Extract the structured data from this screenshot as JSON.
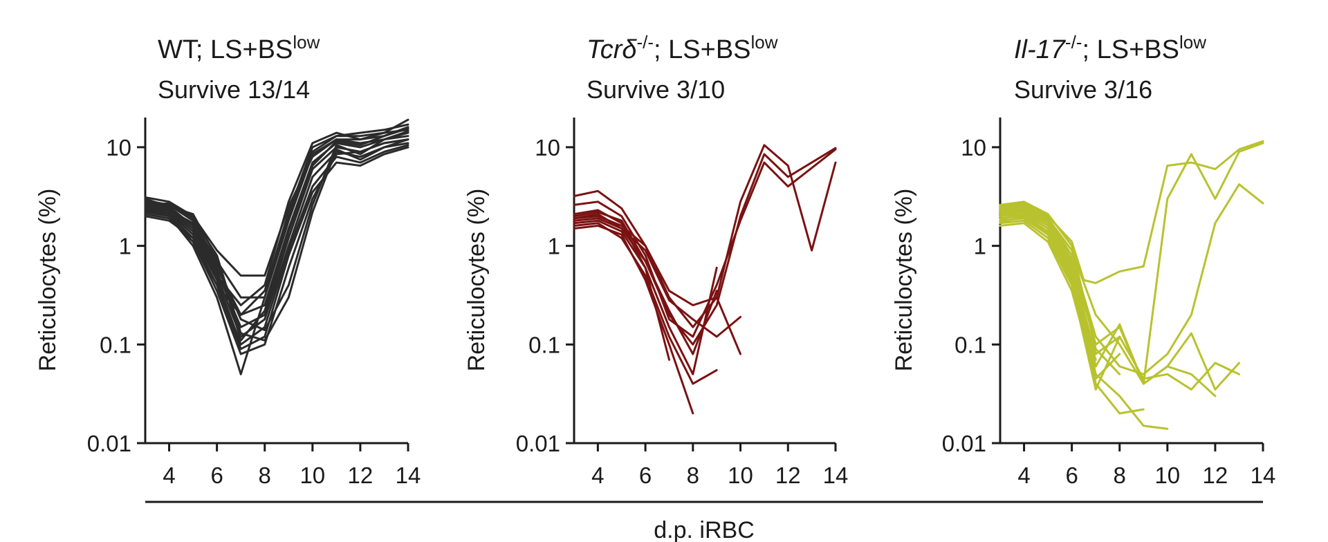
{
  "colors": {
    "wt": "#2b2b2b",
    "tcrd": "#7a1212",
    "il17": "#b8c22e",
    "axis": "#1a1a1a"
  },
  "shared_xlabel": "d.p. iRBC",
  "chart_data": [
    {
      "type": "line",
      "title_parts": [
        "WT; LS+BS",
        "low"
      ],
      "subtitle": "Survive 13/14",
      "ylabel": "Reticulocytes (%)",
      "yscale": "log",
      "ylim": [
        0.01,
        20
      ],
      "yticks": [
        0.01,
        0.1,
        1,
        10
      ],
      "ytick_labels": [
        "0.01",
        "0.1",
        "1",
        "10"
      ],
      "xlim": [
        3,
        14
      ],
      "xticks": [
        4,
        6,
        8,
        10,
        12,
        14
      ],
      "xtick_labels": [
        "4",
        "6",
        "8",
        "10",
        "12",
        "14"
      ],
      "color_key": "wt",
      "series": [
        {
          "x": [
            3,
            4,
            5,
            6,
            7,
            8,
            9,
            10,
            11,
            12,
            13,
            14
          ],
          "y": [
            3.1,
            2.8,
            2.0,
            0.9,
            0.5,
            0.5,
            2.5,
            8.0,
            12,
            11,
            12,
            14
          ]
        },
        {
          "x": [
            3,
            4,
            5,
            6,
            7,
            8,
            9,
            10,
            11,
            12,
            13,
            14
          ],
          "y": [
            2.9,
            2.6,
            1.8,
            0.7,
            0.3,
            0.3,
            2.0,
            9.0,
            13,
            13,
            14,
            15
          ]
        },
        {
          "x": [
            3,
            4,
            5,
            6,
            7,
            8,
            9,
            10,
            11,
            12,
            13,
            14
          ],
          "y": [
            2.8,
            2.5,
            1.6,
            0.6,
            0.2,
            0.25,
            1.5,
            7.0,
            11,
            10,
            12,
            13
          ]
        },
        {
          "x": [
            3,
            4,
            5,
            6,
            7,
            8,
            9,
            10,
            11,
            12,
            13,
            14
          ],
          "y": [
            2.7,
            2.4,
            1.5,
            0.55,
            0.15,
            0.2,
            1.2,
            6.0,
            10,
            9,
            11,
            12
          ]
        },
        {
          "x": [
            3,
            4,
            5,
            6,
            7,
            8,
            9,
            10,
            11,
            12,
            13,
            14
          ],
          "y": [
            2.6,
            2.3,
            1.4,
            0.5,
            0.12,
            0.18,
            1.0,
            5.0,
            9,
            8,
            10,
            11
          ]
        },
        {
          "x": [
            3,
            4,
            5,
            6,
            7,
            8,
            9,
            10,
            11,
            12,
            13,
            14
          ],
          "y": [
            2.5,
            2.2,
            1.3,
            0.45,
            0.1,
            0.15,
            0.9,
            4.0,
            8,
            7,
            9,
            10.5
          ]
        },
        {
          "x": [
            3,
            4,
            5,
            6,
            7,
            8,
            9,
            10,
            11,
            12,
            13,
            14
          ],
          "y": [
            2.4,
            2.1,
            1.2,
            0.4,
            0.09,
            0.12,
            0.8,
            3.5,
            7,
            6.5,
            8.5,
            10
          ]
        },
        {
          "x": [
            3,
            4,
            5,
            6,
            7,
            8,
            9,
            10,
            11,
            12,
            13,
            14
          ],
          "y": [
            2.3,
            2.0,
            1.1,
            0.35,
            0.08,
            0.1,
            0.6,
            3.0,
            8.5,
            9,
            11,
            12
          ]
        },
        {
          "x": [
            3,
            4,
            5,
            6,
            7,
            8,
            9,
            10,
            11,
            12,
            13,
            14
          ],
          "y": [
            2.2,
            2.0,
            1.0,
            0.3,
            0.05,
            0.3,
            1.8,
            8.5,
            12,
            12,
            13,
            16
          ]
        },
        {
          "x": [
            3,
            4,
            5,
            6,
            7,
            8,
            9,
            10,
            11,
            12,
            13,
            14
          ],
          "y": [
            2.1,
            1.9,
            1.1,
            0.4,
            0.2,
            0.35,
            2.2,
            10,
            13,
            14,
            15,
            17
          ]
        },
        {
          "x": [
            3,
            4,
            5,
            6,
            7,
            8,
            9,
            10,
            11,
            12,
            13,
            14
          ],
          "y": [
            2.0,
            1.8,
            1.2,
            0.5,
            0.25,
            0.4,
            2.8,
            11,
            14,
            12,
            14,
            19
          ]
        },
        {
          "x": [
            3,
            4,
            5,
            6,
            7,
            8,
            9,
            10,
            11,
            12,
            13,
            14
          ],
          "y": [
            2.6,
            2.7,
            1.9,
            0.8,
            0.13,
            0.11,
            0.3,
            2.2,
            9.5,
            7.5,
            10,
            12
          ]
        },
        {
          "x": [
            3,
            4,
            5,
            6,
            7,
            8,
            9,
            10,
            11,
            12,
            13,
            14
          ],
          "y": [
            2.9,
            2.3,
            1.7,
            0.65,
            0.18,
            0.14,
            0.4,
            2.6,
            10.5,
            8.5,
            12,
            14.5
          ]
        },
        {
          "x": [
            3,
            4,
            5,
            6,
            7,
            8,
            9,
            10,
            11,
            12,
            13,
            14
          ],
          "y": [
            3.0,
            2.5,
            2.1,
            0.75,
            0.11,
            0.22,
            1.4,
            6.5,
            11.5,
            10.5,
            13,
            15.5
          ]
        }
      ]
    },
    {
      "type": "line",
      "title_parts": [
        "Tcrδ",
        "-/-",
        "; LS+BS",
        "low"
      ],
      "subtitle": "Survive 3/10",
      "ylabel": "Reticulocytes (%)",
      "yscale": "log",
      "ylim": [
        0.01,
        20
      ],
      "yticks": [
        0.01,
        0.1,
        1,
        10
      ],
      "ytick_labels": [
        "0.01",
        "0.1",
        "1",
        "10"
      ],
      "xlim": [
        3,
        14
      ],
      "xticks": [
        4,
        6,
        8,
        10,
        12,
        14
      ],
      "xtick_labels": [
        "4",
        "6",
        "8",
        "10",
        "12",
        "14"
      ],
      "color_key": "tcrd",
      "series": [
        {
          "x": [
            3,
            4,
            5,
            6,
            7,
            8,
            9,
            10,
            11,
            12,
            13,
            14
          ],
          "y": [
            3.2,
            3.6,
            2.4,
            1.0,
            0.3,
            0.15,
            0.3,
            2.8,
            10.5,
            6.5,
            0.9,
            7.0
          ]
        },
        {
          "x": [
            3,
            4,
            5,
            6,
            7,
            8,
            9,
            10,
            11,
            12,
            14
          ],
          "y": [
            2.6,
            2.8,
            2.0,
            0.8,
            0.18,
            0.12,
            0.4,
            1.8,
            7.0,
            4.0,
            9.5
          ]
        },
        {
          "x": [
            3,
            4,
            5,
            6,
            7,
            8,
            9,
            10,
            11,
            12,
            14
          ],
          "y": [
            2.0,
            2.2,
            1.8,
            0.7,
            0.2,
            0.1,
            0.25,
            2.0,
            8.5,
            5.0,
            9.8
          ]
        },
        {
          "x": [
            3,
            4,
            5,
            6,
            7,
            8,
            9,
            10
          ],
          "y": [
            1.9,
            2.0,
            1.6,
            1.0,
            0.35,
            0.25,
            0.3,
            0.08
          ]
        },
        {
          "x": [
            3,
            4,
            5,
            6,
            7,
            8,
            9,
            10
          ],
          "y": [
            1.8,
            1.9,
            1.5,
            0.9,
            0.28,
            0.18,
            0.12,
            0.19
          ]
        },
        {
          "x": [
            3,
            4,
            5,
            6,
            7,
            8,
            9
          ],
          "y": [
            1.7,
            1.8,
            1.4,
            0.6,
            0.15,
            0.05,
            0.6
          ]
        },
        {
          "x": [
            3,
            4,
            5,
            6,
            7,
            8,
            9
          ],
          "y": [
            1.6,
            1.7,
            1.2,
            0.5,
            0.12,
            0.04,
            0.055
          ]
        },
        {
          "x": [
            3,
            4,
            5,
            6,
            7,
            8
          ],
          "y": [
            1.5,
            1.6,
            1.3,
            0.45,
            0.1,
            0.02
          ]
        },
        {
          "x": [
            3,
            4,
            5,
            6,
            7,
            8,
            9
          ],
          "y": [
            1.9,
            2.1,
            1.5,
            0.7,
            0.22,
            0.08,
            0.35
          ]
        },
        {
          "x": [
            3,
            4,
            5,
            6,
            7
          ],
          "y": [
            2.1,
            2.3,
            1.7,
            0.6,
            0.07
          ]
        }
      ]
    },
    {
      "type": "line",
      "title_parts": [
        "Il-17",
        "-/-",
        "; LS+BS",
        "low"
      ],
      "subtitle": "Survive 3/16",
      "ylabel": "Reticulocytes (%)",
      "yscale": "log",
      "ylim": [
        0.01,
        20
      ],
      "yticks": [
        0.01,
        0.1,
        1,
        10
      ],
      "ytick_labels": [
        "0.01",
        "0.1",
        "1",
        "10"
      ],
      "xlim": [
        3,
        14
      ],
      "xticks": [
        4,
        6,
        8,
        10,
        12,
        14
      ],
      "xtick_labels": [
        "4",
        "6",
        "8",
        "10",
        "12",
        "14"
      ],
      "color_key": "il17",
      "series": [
        {
          "x": [
            3,
            4,
            5,
            6,
            6.5,
            7,
            8,
            9,
            10,
            11,
            12,
            13,
            14
          ],
          "y": [
            2.5,
            2.7,
            2.0,
            1.1,
            0.45,
            0.42,
            0.55,
            0.62,
            6.5,
            7.0,
            6.0,
            9.5,
            11.5
          ]
        },
        {
          "x": [
            3,
            4,
            5,
            6,
            7,
            8,
            9,
            10,
            11,
            12,
            13,
            14
          ],
          "y": [
            2.4,
            2.5,
            1.9,
            0.9,
            0.2,
            0.1,
            0.04,
            3.0,
            8.5,
            3.0,
            9.0,
            11.0
          ]
        },
        {
          "x": [
            3,
            4,
            5,
            6,
            7,
            8,
            9,
            10,
            11,
            12,
            13,
            14
          ],
          "y": [
            2.3,
            2.4,
            1.8,
            0.8,
            0.12,
            0.06,
            0.05,
            0.08,
            0.2,
            1.7,
            4.2,
            2.7
          ]
        },
        {
          "x": [
            3,
            4,
            5,
            6,
            7,
            8,
            9,
            10,
            11,
            12,
            13
          ],
          "y": [
            2.2,
            2.3,
            1.7,
            0.7,
            0.1,
            0.15,
            0.04,
            0.06,
            0.13,
            0.035,
            0.065
          ]
        },
        {
          "x": [
            3,
            4,
            5,
            6,
            7,
            8,
            9,
            10,
            11,
            12,
            13
          ],
          "y": [
            2.1,
            2.2,
            1.6,
            0.6,
            0.08,
            0.12,
            0.045,
            0.05,
            0.035,
            0.065,
            0.05
          ]
        },
        {
          "x": [
            3,
            4,
            5,
            6,
            7,
            8,
            9,
            10,
            11,
            12
          ],
          "y": [
            2.0,
            2.1,
            1.5,
            0.55,
            0.06,
            0.16,
            0.04,
            0.06,
            0.05,
            0.03
          ]
        },
        {
          "x": [
            3,
            4,
            5,
            6,
            7,
            8,
            9,
            10
          ],
          "y": [
            1.9,
            2.0,
            1.4,
            0.5,
            0.05,
            0.03,
            0.015,
            0.014
          ]
        },
        {
          "x": [
            3,
            4,
            5,
            6,
            7,
            8,
            9
          ],
          "y": [
            1.8,
            1.9,
            1.3,
            0.45,
            0.04,
            0.02,
            0.022
          ]
        },
        {
          "x": [
            3,
            4,
            5,
            6,
            7,
            8
          ],
          "y": [
            1.7,
            1.8,
            1.2,
            0.4,
            0.035,
            0.12
          ]
        },
        {
          "x": [
            3,
            4,
            5,
            6,
            7,
            8
          ],
          "y": [
            1.6,
            1.7,
            1.1,
            0.35,
            0.045,
            0.08
          ]
        },
        {
          "x": [
            3,
            4,
            5,
            6,
            7,
            8
          ],
          "y": [
            2.6,
            2.8,
            2.1,
            1.0,
            0.09,
            0.05
          ]
        },
        {
          "x": [
            3,
            4,
            5,
            6,
            7
          ],
          "y": [
            2.4,
            2.6,
            1.9,
            0.8,
            0.06
          ]
        },
        {
          "x": [
            3,
            4,
            5,
            6,
            7
          ],
          "y": [
            2.0,
            2.3,
            1.7,
            0.65,
            0.05
          ]
        },
        {
          "x": [
            3,
            4,
            5,
            6,
            7
          ],
          "y": [
            1.85,
            2.1,
            1.5,
            0.5,
            0.04
          ]
        },
        {
          "x": [
            3,
            4,
            5,
            6,
            7
          ],
          "y": [
            1.75,
            1.95,
            1.35,
            0.42,
            0.07
          ]
        },
        {
          "x": [
            3,
            4,
            5,
            6,
            7
          ],
          "y": [
            2.2,
            2.5,
            1.8,
            0.72,
            0.1
          ]
        }
      ]
    }
  ]
}
